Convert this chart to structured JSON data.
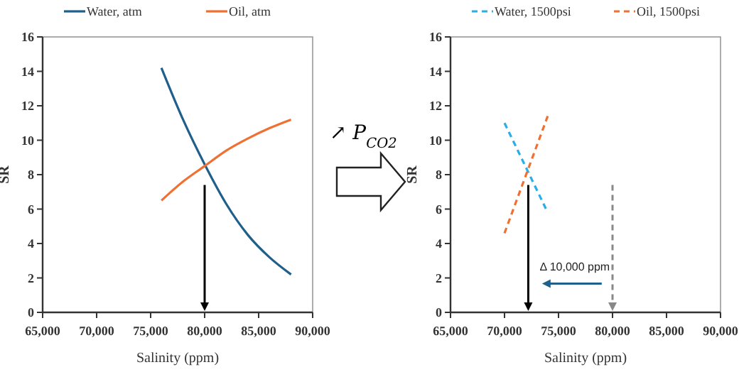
{
  "chart_data": [
    {
      "type": "line",
      "xlabel": "Salinity (ppm)",
      "ylabel": "SR",
      "x": [
        76000,
        78000,
        80000,
        82000,
        84000,
        86000,
        88000
      ],
      "series": [
        {
          "name": "Water, atm",
          "color": "#1f5f8b",
          "values": [
            14.2,
            11.2,
            8.6,
            6.3,
            4.5,
            3.2,
            2.2
          ]
        },
        {
          "name": "Oil, atm",
          "color": "#f07032",
          "values": [
            6.5,
            7.6,
            8.5,
            9.4,
            10.1,
            10.7,
            11.2
          ]
        }
      ],
      "xlim": [
        65000,
        90000
      ],
      "xticks": [
        {
          "value": 65000,
          "label": "65,000"
        },
        {
          "value": 70000,
          "label": "70,000"
        },
        {
          "value": 75000,
          "label": "75,000"
        },
        {
          "value": 80000,
          "label": "80,000"
        },
        {
          "value": 85000,
          "label": "85,000"
        },
        {
          "value": 90000,
          "label": "90,000"
        }
      ],
      "ylim": [
        0,
        16
      ],
      "yticks": [
        0,
        2,
        4,
        6,
        8,
        10,
        12,
        14,
        16
      ],
      "legend": "top",
      "line_style": "solid",
      "marker": "none",
      "grid": false,
      "ref_lines": [
        {
          "axis": "x",
          "value": 80000,
          "color": "#000000",
          "line_style": "solid"
        }
      ],
      "annotations": [
        "↗ P$_{CO2}$"
      ]
    },
    {
      "type": "line",
      "xlabel": "Salinity (ppm)",
      "ylabel": "SR",
      "x": [
        70000,
        74000
      ],
      "series": [
        {
          "name": "Water, 1500psi",
          "color": "#29aee8",
          "values": [
            11,
            5.8
          ]
        },
        {
          "name": "Oil, 1500psi",
          "color": "#f07032",
          "values": [
            4.6,
            11.4
          ]
        }
      ],
      "xlim": [
        65000,
        90000
      ],
      "xticks": [
        {
          "value": 65000,
          "label": "65,000"
        },
        {
          "value": 70000,
          "label": "70,000"
        },
        {
          "value": 75000,
          "label": "75,000"
        },
        {
          "value": 80000,
          "label": "80,000"
        },
        {
          "value": 85000,
          "label": "85,000"
        },
        {
          "value": 90000,
          "label": "90,000"
        }
      ],
      "ylim": [
        0,
        16
      ],
      "yticks": [
        0,
        2,
        4,
        6,
        8,
        10,
        12,
        14,
        16
      ],
      "legend": "top",
      "line_style": "dashed",
      "marker": "none",
      "grid": false,
      "ref_lines": [
        {
          "axis": "x",
          "value": 72200,
          "color": "#000000",
          "line_style": "solid"
        },
        {
          "axis": "x",
          "value": 80000,
          "color": "#888888",
          "line_style": "dashed"
        }
      ],
      "annotations": [
        "Δ 10,000 ppm"
      ]
    }
  ]
}
